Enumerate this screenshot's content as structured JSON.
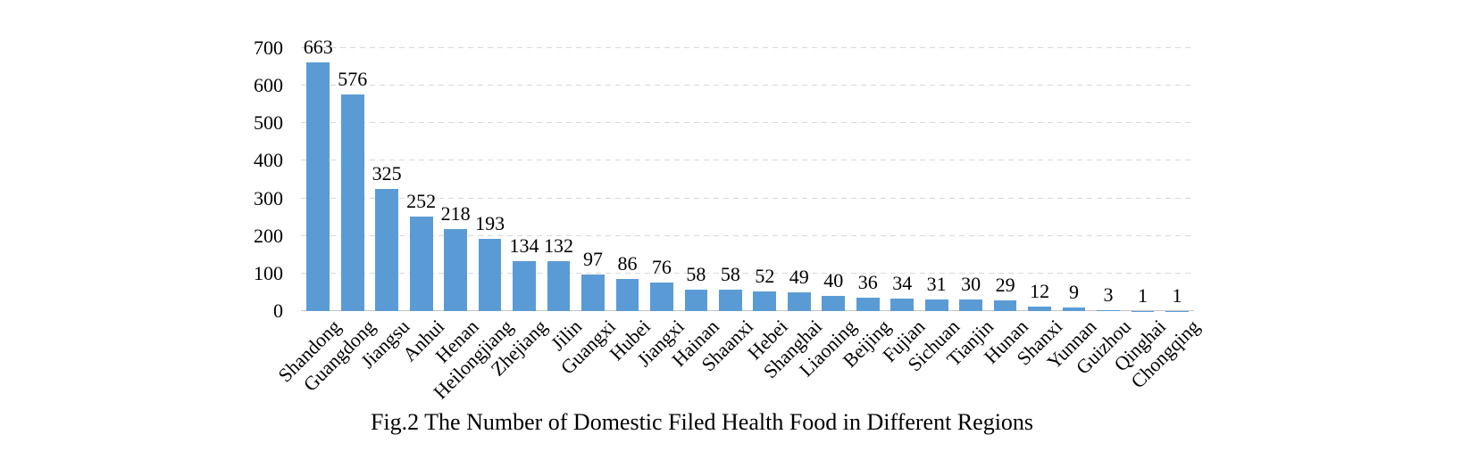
{
  "figure": {
    "caption": "Fig.2 The Number of Domestic Filed Health Food in Different Regions"
  },
  "chart_data": {
    "type": "bar",
    "title": "",
    "xlabel": "",
    "ylabel": "",
    "categories": [
      "Shandong",
      "Guangdong",
      "Jiangsu",
      "Anhui",
      "Henan",
      "Heilongjiang",
      "Zhejiang",
      "Jilin",
      "Guangxi",
      "Hubei",
      "Jiangxi",
      "Hainan",
      "Shaanxi",
      "Hebei",
      "Shanghai",
      "Liaoning",
      "Beijing",
      "Fujian",
      "Sichuan",
      "Tianjin",
      "Hunan",
      "Shanxi",
      "Yunnan",
      "Guizhou",
      "Qinghai",
      "Chongqing"
    ],
    "values": [
      663,
      576,
      325,
      252,
      218,
      193,
      134,
      132,
      97,
      86,
      76,
      58,
      58,
      52,
      49,
      40,
      36,
      34,
      31,
      30,
      29,
      12,
      9,
      3,
      1,
      1
    ],
    "ylim": [
      0,
      700
    ],
    "yticks": [
      0,
      100,
      200,
      300,
      400,
      500,
      600,
      700
    ],
    "grid": "dashed-horizontal",
    "legend": "none",
    "data_labels": true,
    "x_label_rotation_deg": 45,
    "bar_color": "#5B9BD5",
    "gridline_color": "#D8D8D8",
    "axis_line_color": "#C6C6C6"
  }
}
